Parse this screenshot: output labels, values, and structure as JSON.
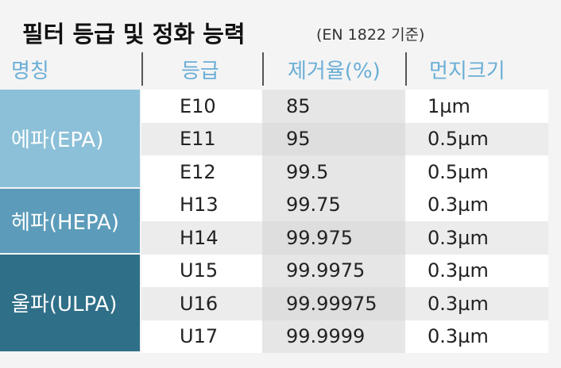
{
  "header": {
    "title": "필터 등급 및 정화 능력",
    "subtitle": "(EN 1822 기준)"
  },
  "table": {
    "columns": [
      "명칭",
      "등급",
      "제거율(%)",
      "먼지크기"
    ],
    "groups": [
      {
        "name": "에파(EPA)",
        "rows": [
          [
            "E10",
            "85",
            "1µm"
          ],
          [
            "E11",
            "95",
            "0.5µm"
          ],
          [
            "E12",
            "99.5",
            "0.5µm"
          ]
        ]
      },
      {
        "name": "헤파(HEPA)",
        "rows": [
          [
            "H13",
            "99.75",
            "0.3µm"
          ],
          [
            "H14",
            "99.975",
            "0.3µm"
          ]
        ]
      },
      {
        "name": "울파(ULPA)",
        "rows": [
          [
            "U15",
            "99.9975",
            "0.3µm"
          ],
          [
            "U16",
            "99.99975",
            "0.3µm"
          ],
          [
            "U17",
            "99.9999",
            "0.3µm"
          ]
        ]
      }
    ]
  }
}
